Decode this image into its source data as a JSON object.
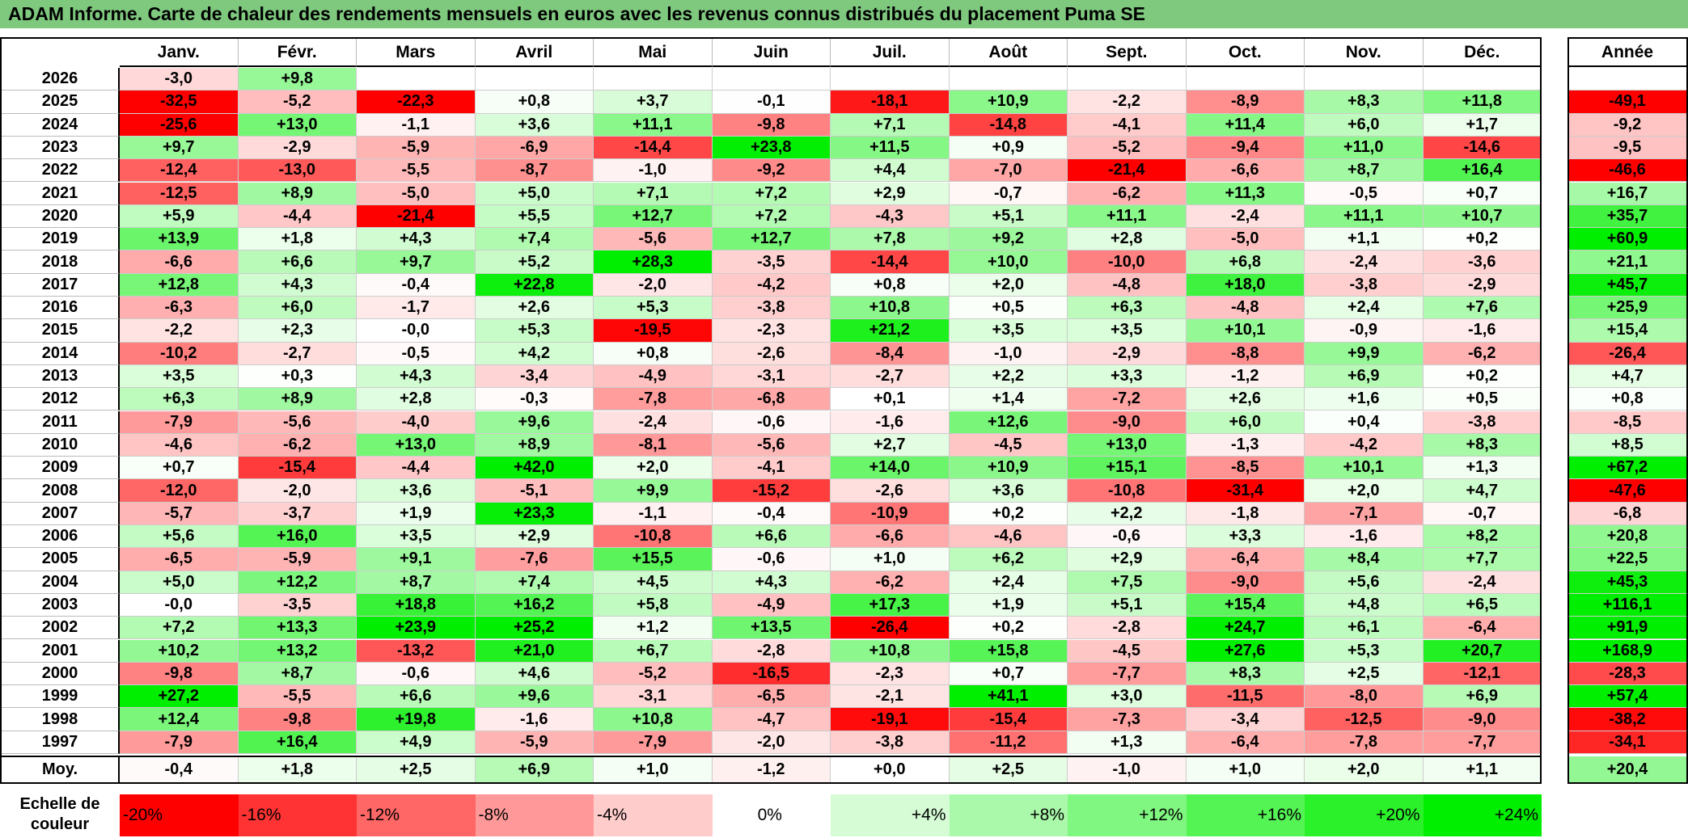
{
  "title": "ADAM Informe. Carte de chaleur des rendements mensuels en euros avec les revenus connus distribués du placement Puma SE",
  "chart_data": {
    "type": "heatmap",
    "columns": [
      "Janv.",
      "Févr.",
      "Mars",
      "Avril",
      "Mai",
      "Juin",
      "Juil.",
      "Août",
      "Sept.",
      "Oct.",
      "Nov.",
      "Déc."
    ],
    "year_column": "Année",
    "rows": [
      {
        "year": "2026",
        "months": [
          "-3,0",
          "+9,8",
          "",
          "",
          "",
          "",
          "",
          "",
          "",
          "",
          "",
          ""
        ],
        "annual": ""
      },
      {
        "year": "2025",
        "months": [
          "-32,5",
          "-5,2",
          "-22,3",
          "+0,8",
          "+3,7",
          "-0,1",
          "-18,1",
          "+10,9",
          "-2,2",
          "-8,9",
          "+8,3",
          "+11,8"
        ],
        "annual": "-49,1"
      },
      {
        "year": "2024",
        "months": [
          "-25,6",
          "+13,0",
          "-1,1",
          "+3,6",
          "+11,1",
          "-9,8",
          "+7,1",
          "-14,8",
          "-4,1",
          "+11,4",
          "+6,0",
          "+1,7"
        ],
        "annual": "-9,2"
      },
      {
        "year": "2023",
        "months": [
          "+9,7",
          "-2,9",
          "-5,9",
          "-6,9",
          "-14,4",
          "+23,8",
          "+11,5",
          "+0,9",
          "-5,2",
          "-9,4",
          "+11,0",
          "-14,6"
        ],
        "annual": "-9,5"
      },
      {
        "year": "2022",
        "months": [
          "-12,4",
          "-13,0",
          "-5,5",
          "-8,7",
          "-1,0",
          "-9,2",
          "+4,4",
          "-7,0",
          "-21,4",
          "-6,6",
          "+8,7",
          "+16,4"
        ],
        "annual": "-46,6"
      },
      {
        "year": "2021",
        "months": [
          "-12,5",
          "+8,9",
          "-5,0",
          "+5,0",
          "+7,1",
          "+7,2",
          "+2,9",
          "-0,7",
          "-6,2",
          "+11,3",
          "-0,5",
          "+0,7"
        ],
        "annual": "+16,7"
      },
      {
        "year": "2020",
        "months": [
          "+5,9",
          "-4,4",
          "-21,4",
          "+5,5",
          "+12,7",
          "+7,2",
          "-4,3",
          "+5,1",
          "+11,1",
          "-2,4",
          "+11,1",
          "+10,7"
        ],
        "annual": "+35,7"
      },
      {
        "year": "2019",
        "months": [
          "+13,9",
          "+1,8",
          "+4,3",
          "+7,4",
          "-5,6",
          "+12,7",
          "+7,8",
          "+9,2",
          "+2,8",
          "-5,0",
          "+1,1",
          "+0,2"
        ],
        "annual": "+60,9"
      },
      {
        "year": "2018",
        "months": [
          "-6,6",
          "+6,6",
          "+9,7",
          "+5,2",
          "+28,3",
          "-3,5",
          "-14,4",
          "+10,0",
          "-10,0",
          "+6,8",
          "-2,4",
          "-3,6"
        ],
        "annual": "+21,1"
      },
      {
        "year": "2017",
        "months": [
          "+12,8",
          "+4,3",
          "-0,4",
          "+22,8",
          "-2,0",
          "-4,2",
          "+0,8",
          "+2,0",
          "-4,8",
          "+18,0",
          "-3,8",
          "-2,9"
        ],
        "annual": "+45,7"
      },
      {
        "year": "2016",
        "months": [
          "-6,3",
          "+6,0",
          "-1,7",
          "+2,6",
          "+5,3",
          "-3,8",
          "+10,8",
          "+0,5",
          "+6,3",
          "-4,8",
          "+2,4",
          "+7,6"
        ],
        "annual": "+25,9"
      },
      {
        "year": "2015",
        "months": [
          "-2,2",
          "+2,3",
          "-0,0",
          "+5,3",
          "-19,5",
          "-2,3",
          "+21,2",
          "+3,5",
          "+3,5",
          "+10,1",
          "-0,9",
          "-1,6"
        ],
        "annual": "+15,4"
      },
      {
        "year": "2014",
        "months": [
          "-10,2",
          "-2,7",
          "-0,5",
          "+4,2",
          "+0,8",
          "-2,6",
          "-8,4",
          "-1,0",
          "-2,9",
          "-8,8",
          "+9,9",
          "-6,2"
        ],
        "annual": "-26,4"
      },
      {
        "year": "2013",
        "months": [
          "+3,5",
          "+0,3",
          "+4,3",
          "-3,4",
          "-4,9",
          "-3,1",
          "-2,7",
          "+2,2",
          "+3,3",
          "-1,2",
          "+6,9",
          "+0,2"
        ],
        "annual": "+4,7"
      },
      {
        "year": "2012",
        "months": [
          "+6,3",
          "+8,9",
          "+2,8",
          "-0,3",
          "-7,8",
          "-6,8",
          "+0,1",
          "+1,4",
          "-7,2",
          "+2,6",
          "+1,6",
          "+0,5"
        ],
        "annual": "+0,8"
      },
      {
        "year": "2011",
        "months": [
          "-7,9",
          "-5,6",
          "-4,0",
          "+9,6",
          "-2,4",
          "-0,6",
          "-1,6",
          "+12,6",
          "-9,0",
          "+6,0",
          "+0,4",
          "-3,8"
        ],
        "annual": "-8,5"
      },
      {
        "year": "2010",
        "months": [
          "-4,6",
          "-6,2",
          "+13,0",
          "+8,9",
          "-8,1",
          "-5,6",
          "+2,7",
          "-4,5",
          "+13,0",
          "-1,3",
          "-4,2",
          "+8,3"
        ],
        "annual": "+8,5"
      },
      {
        "year": "2009",
        "months": [
          "+0,7",
          "-15,4",
          "-4,4",
          "+42,0",
          "+2,0",
          "-4,1",
          "+14,0",
          "+10,9",
          "+15,1",
          "-8,5",
          "+10,1",
          "+1,3"
        ],
        "annual": "+67,2"
      },
      {
        "year": "2008",
        "months": [
          "-12,0",
          "-2,0",
          "+3,6",
          "-5,1",
          "+9,9",
          "-15,2",
          "-2,6",
          "+3,6",
          "-10,8",
          "-31,4",
          "+2,0",
          "+4,7"
        ],
        "annual": "-47,6"
      },
      {
        "year": "2007",
        "months": [
          "-5,7",
          "-3,7",
          "+1,9",
          "+23,3",
          "-1,1",
          "-0,4",
          "-10,9",
          "+0,2",
          "+2,2",
          "-1,8",
          "-7,1",
          "-0,7"
        ],
        "annual": "-6,8"
      },
      {
        "year": "2006",
        "months": [
          "+5,6",
          "+16,0",
          "+3,5",
          "+2,9",
          "-10,8",
          "+6,6",
          "-6,6",
          "-4,6",
          "-0,6",
          "+3,3",
          "-1,6",
          "+8,2"
        ],
        "annual": "+20,8"
      },
      {
        "year": "2005",
        "months": [
          "-6,5",
          "-5,9",
          "+9,1",
          "-7,6",
          "+15,5",
          "-0,6",
          "+1,0",
          "+6,2",
          "+2,9",
          "-6,4",
          "+8,4",
          "+7,7"
        ],
        "annual": "+22,5"
      },
      {
        "year": "2004",
        "months": [
          "+5,0",
          "+12,2",
          "+8,7",
          "+7,4",
          "+4,5",
          "+4,3",
          "-6,2",
          "+2,4",
          "+7,5",
          "-9,0",
          "+5,6",
          "-2,4"
        ],
        "annual": "+45,3"
      },
      {
        "year": "2003",
        "months": [
          "-0,0",
          "-3,5",
          "+18,8",
          "+16,2",
          "+5,8",
          "-4,9",
          "+17,3",
          "+1,9",
          "+5,1",
          "+15,4",
          "+4,8",
          "+6,5"
        ],
        "annual": "+116,1"
      },
      {
        "year": "2002",
        "months": [
          "+7,2",
          "+13,3",
          "+23,9",
          "+25,2",
          "+1,2",
          "+13,5",
          "-26,4",
          "+0,2",
          "-2,8",
          "+24,7",
          "+6,1",
          "-6,4"
        ],
        "annual": "+91,9"
      },
      {
        "year": "2001",
        "months": [
          "+10,2",
          "+13,2",
          "-13,2",
          "+21,0",
          "+6,7",
          "-2,8",
          "+10,8",
          "+15,8",
          "-4,5",
          "+27,6",
          "+5,3",
          "+20,7"
        ],
        "annual": "+168,9"
      },
      {
        "year": "2000",
        "months": [
          "-9,8",
          "+8,7",
          "-0,6",
          "+4,6",
          "-5,2",
          "-16,5",
          "-2,3",
          "+0,7",
          "-7,7",
          "+8,3",
          "+2,5",
          "-12,1"
        ],
        "annual": "-28,3"
      },
      {
        "year": "1999",
        "months": [
          "+27,2",
          "-5,5",
          "+6,6",
          "+9,6",
          "-3,1",
          "-6,5",
          "-2,1",
          "+41,1",
          "+3,0",
          "-11,5",
          "-8,0",
          "+6,9"
        ],
        "annual": "+57,4"
      },
      {
        "year": "1998",
        "months": [
          "+12,4",
          "-9,8",
          "+19,8",
          "-1,6",
          "+10,8",
          "-4,7",
          "-19,1",
          "-15,4",
          "-7,3",
          "-3,4",
          "-12,5",
          "-9,0"
        ],
        "annual": "-38,2"
      },
      {
        "year": "1997",
        "months": [
          "-7,9",
          "+16,4",
          "+4,9",
          "-5,9",
          "-7,9",
          "-2,0",
          "-3,8",
          "-11,2",
          "+1,3",
          "-6,4",
          "-7,8",
          "-7,7"
        ],
        "annual": "-34,1"
      }
    ],
    "average": {
      "label": "Moy.",
      "months": [
        "-0,4",
        "+1,8",
        "+2,5",
        "+6,9",
        "+1,0",
        "-1,2",
        "+0,0",
        "+2,5",
        "-1,0",
        "+1,0",
        "+2,0",
        "+1,1"
      ],
      "annual": "+20,4"
    },
    "color_scale": {
      "label": "Echelle de couleur",
      "stops": [
        "-20%",
        "-16%",
        "-12%",
        "-8%",
        "-4%",
        "0%",
        "+4%",
        "+8%",
        "+12%",
        "+16%",
        "+20%",
        "+24%"
      ],
      "min_value": -20,
      "max_value": 24,
      "negative_color": "#ff0000",
      "neutral_color": "#ffffff",
      "positive_color": "#00ee00"
    }
  }
}
